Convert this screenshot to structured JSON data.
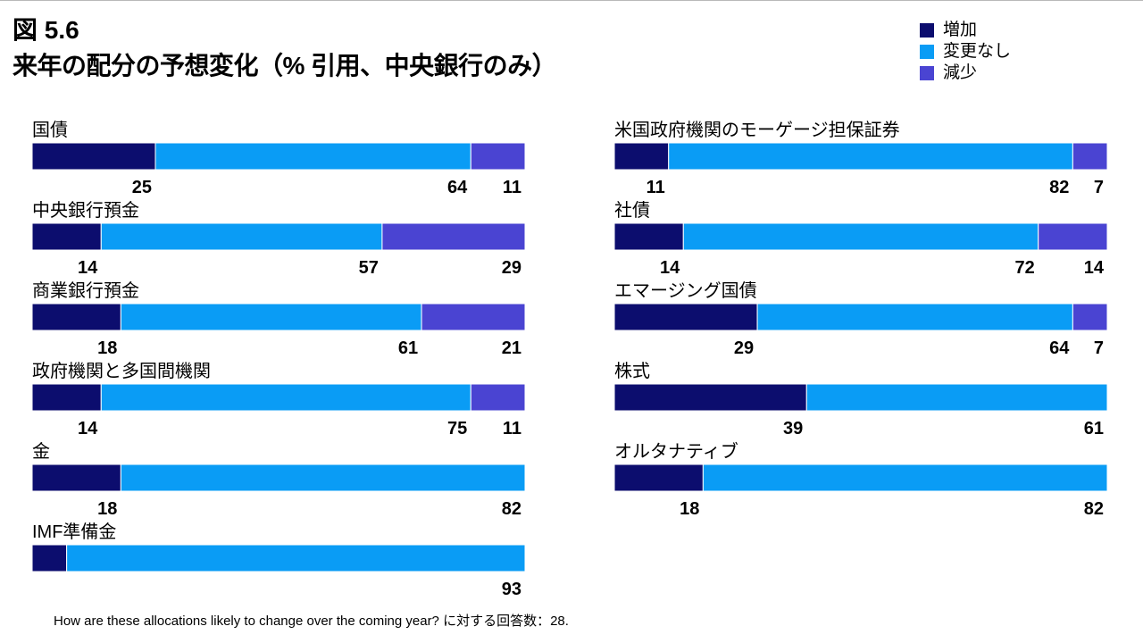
{
  "header": {
    "figure": "図 5.6",
    "title": "来年の配分の予想変化（% 引用、中央銀行のみ）"
  },
  "colors": {
    "increase": "#0c0d6e",
    "unchanged": "#0a9cf5",
    "decrease": "#4a44d2"
  },
  "chart_data": {
    "type": "bar",
    "orientation": "horizontal",
    "stacked": true,
    "normalized_to": 100,
    "unit": "%",
    "legend_position": "top-right",
    "series": [
      {
        "name": "増加",
        "color": "#0c0d6e"
      },
      {
        "name": "変更なし",
        "color": "#0a9cf5"
      },
      {
        "name": "減少",
        "color": "#4a44d2"
      }
    ],
    "panels": [
      {
        "position": "left",
        "categories": [
          {
            "name": "国債",
            "values": [
              25,
              64,
              11
            ]
          },
          {
            "name": "中央銀行預金",
            "values": [
              14,
              57,
              29
            ]
          },
          {
            "name": "商業銀行預金",
            "values": [
              18,
              61,
              21
            ]
          },
          {
            "name": "政府機関と多国間機関",
            "values": [
              14,
              75,
              11
            ]
          },
          {
            "name": "金",
            "values": [
              18,
              82,
              0
            ]
          },
          {
            "name": "IMF準備金",
            "values": [
              7,
              93,
              0
            ],
            "hidden_labels": [
              0
            ]
          }
        ]
      },
      {
        "position": "right",
        "categories": [
          {
            "name": "米国政府機関のモーゲージ担保証券",
            "values": [
              11,
              82,
              7
            ]
          },
          {
            "name": "社債",
            "values": [
              14,
              72,
              14
            ]
          },
          {
            "name": "エマージング国債",
            "values": [
              29,
              64,
              7
            ]
          },
          {
            "name": "株式",
            "values": [
              39,
              61,
              0
            ]
          },
          {
            "name": "オルタナティブ",
            "values": [
              18,
              82,
              0
            ]
          }
        ]
      }
    ]
  },
  "footnote": "How are these allocations likely to change over the coming year? に対する回答数：28."
}
